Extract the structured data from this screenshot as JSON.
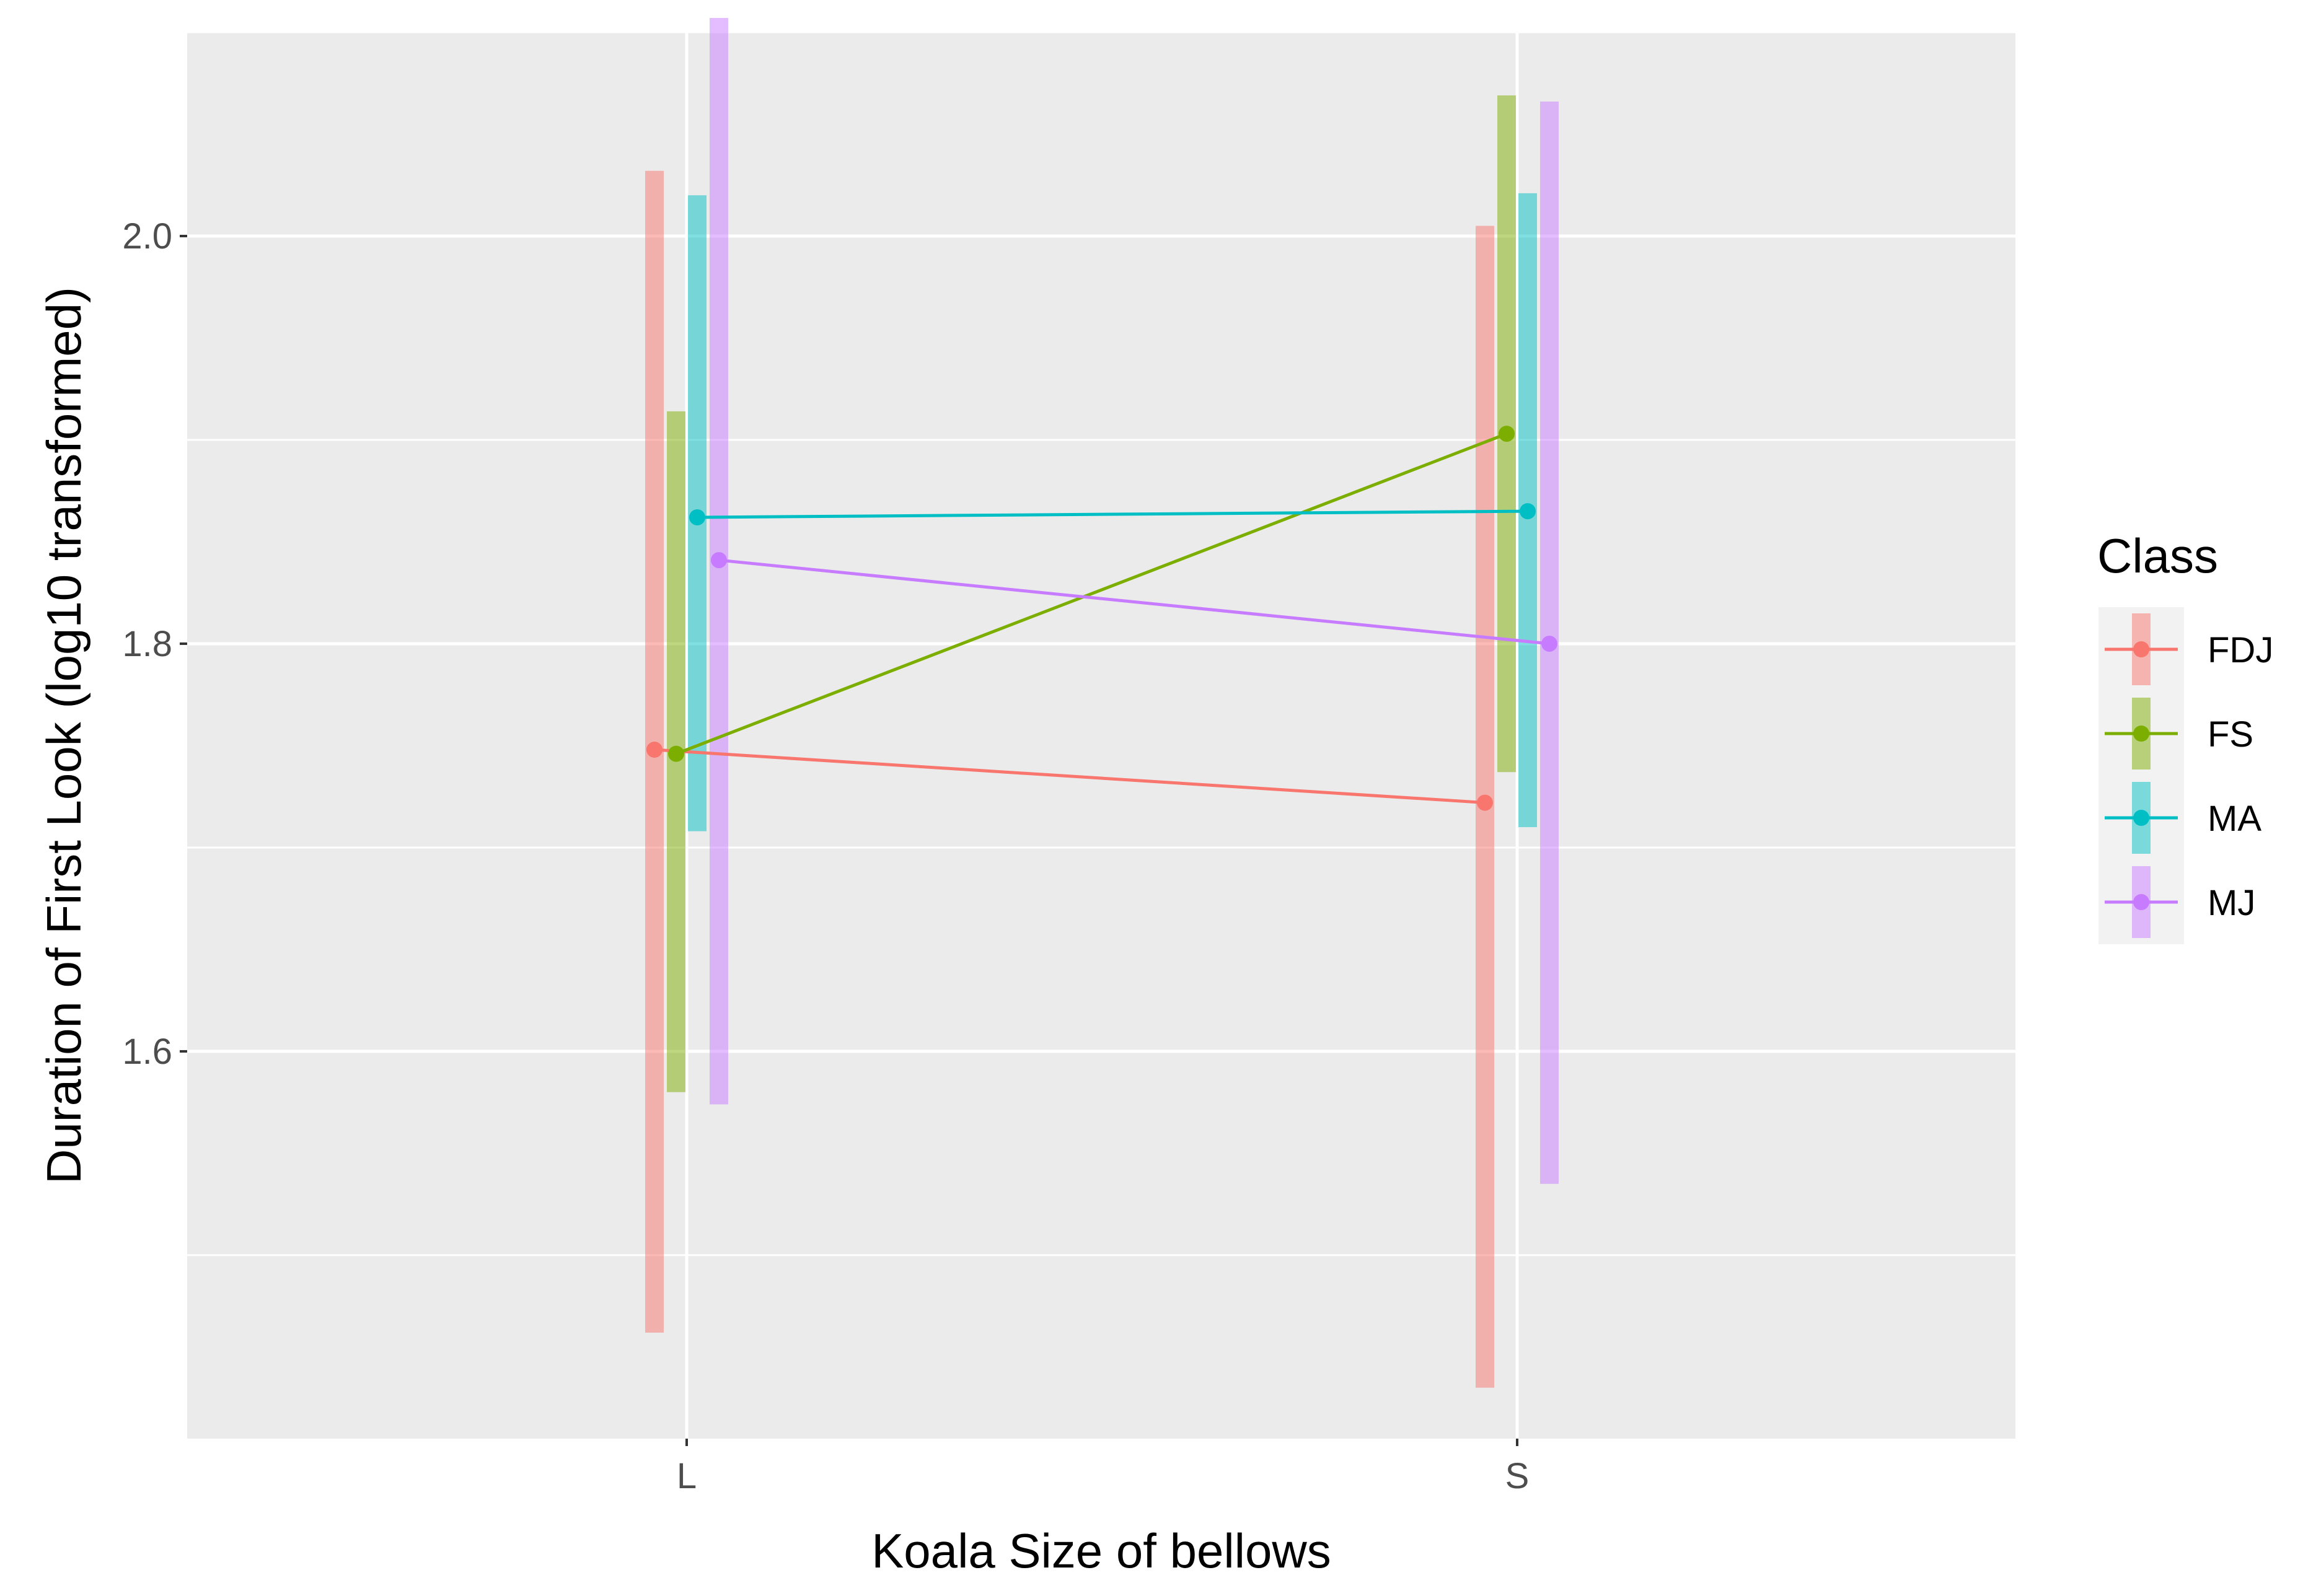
{
  "chart_data": {
    "type": "line",
    "title": "",
    "xlabel": "Koala Size of bellows",
    "ylabel": "Duration of First Look (log10 transformed)",
    "categories": [
      "L",
      "S"
    ],
    "ylim": [
      1.41,
      2.1
    ],
    "yticks": [
      1.6,
      1.8,
      2.0
    ],
    "ytick_labels": [
      "1.6",
      "1.8",
      "2.0"
    ],
    "grid": true,
    "legend": {
      "title": "Class",
      "position": "right"
    },
    "series": [
      {
        "name": "FDJ",
        "color": "#F8766D",
        "values": [
          1.748,
          1.722
        ],
        "lower": [
          1.462,
          1.435
        ],
        "upper": [
          2.032,
          2.005
        ]
      },
      {
        "name": "FS",
        "color": "#7CAE00",
        "values": [
          1.746,
          1.903
        ],
        "lower": [
          1.58,
          1.737
        ],
        "upper": [
          1.914,
          2.069
        ]
      },
      {
        "name": "MA",
        "color": "#00BFC4",
        "values": [
          1.862,
          1.865
        ],
        "lower": [
          1.708,
          1.71
        ],
        "upper": [
          2.02,
          2.021
        ]
      },
      {
        "name": "MJ",
        "color": "#C77CFF",
        "values": [
          1.841,
          1.8
        ],
        "lower": [
          1.574,
          1.535
        ],
        "upper": [
          2.107,
          2.066
        ]
      }
    ]
  }
}
